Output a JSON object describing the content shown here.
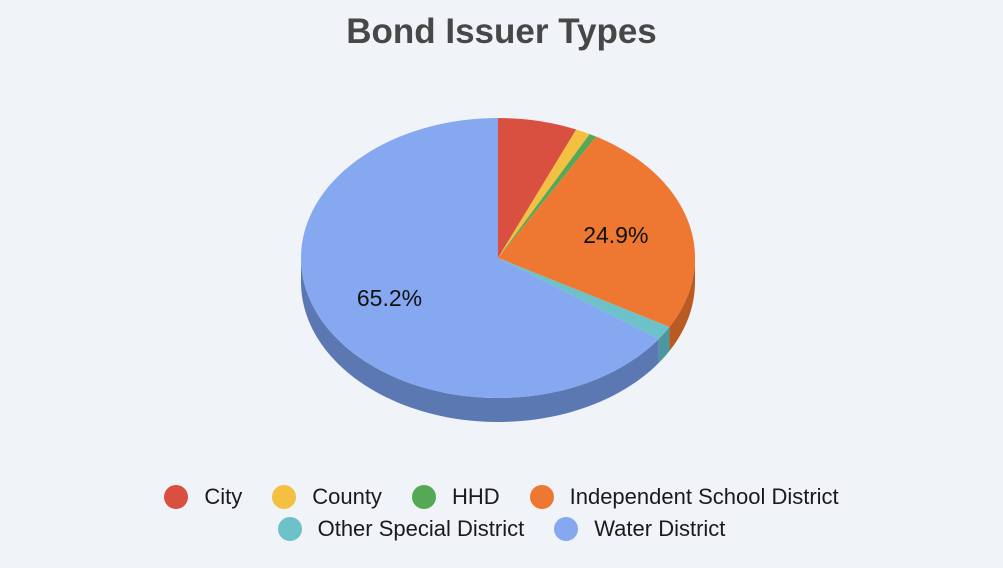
{
  "chart_data": {
    "type": "pie",
    "title": "Bond Issuer Types",
    "three_d": true,
    "start_angle_deg": 0,
    "direction": "clockwise",
    "slices": [
      {
        "label": "City",
        "value": 6.5,
        "color": "#d95040",
        "side_color": "#a93d30",
        "show_label": false
      },
      {
        "label": "County",
        "value": 1.2,
        "color": "#f4c042",
        "side_color": "#c99a2f",
        "show_label": false
      },
      {
        "label": "HHD",
        "value": 0.6,
        "color": "#55a856",
        "side_color": "#3f8242",
        "show_label": false
      },
      {
        "label": "Independent School District",
        "value": 24.9,
        "color": "#ee7732",
        "side_color": "#b85a22",
        "show_label": true,
        "display": "24.9%"
      },
      {
        "label": "Other Special District",
        "value": 1.6,
        "color": "#6dc1c9",
        "side_color": "#4a979e",
        "show_label": false
      },
      {
        "label": "Water District",
        "value": 65.2,
        "color": "#86a8f0",
        "side_color": "#5b78b2",
        "show_label": true,
        "display": "65.2%"
      }
    ],
    "legend": {
      "position": "bottom",
      "rows": [
        [
          "City",
          "County",
          "HHD",
          "Independent School District"
        ],
        [
          "Other Special District",
          "Water District"
        ]
      ]
    }
  }
}
